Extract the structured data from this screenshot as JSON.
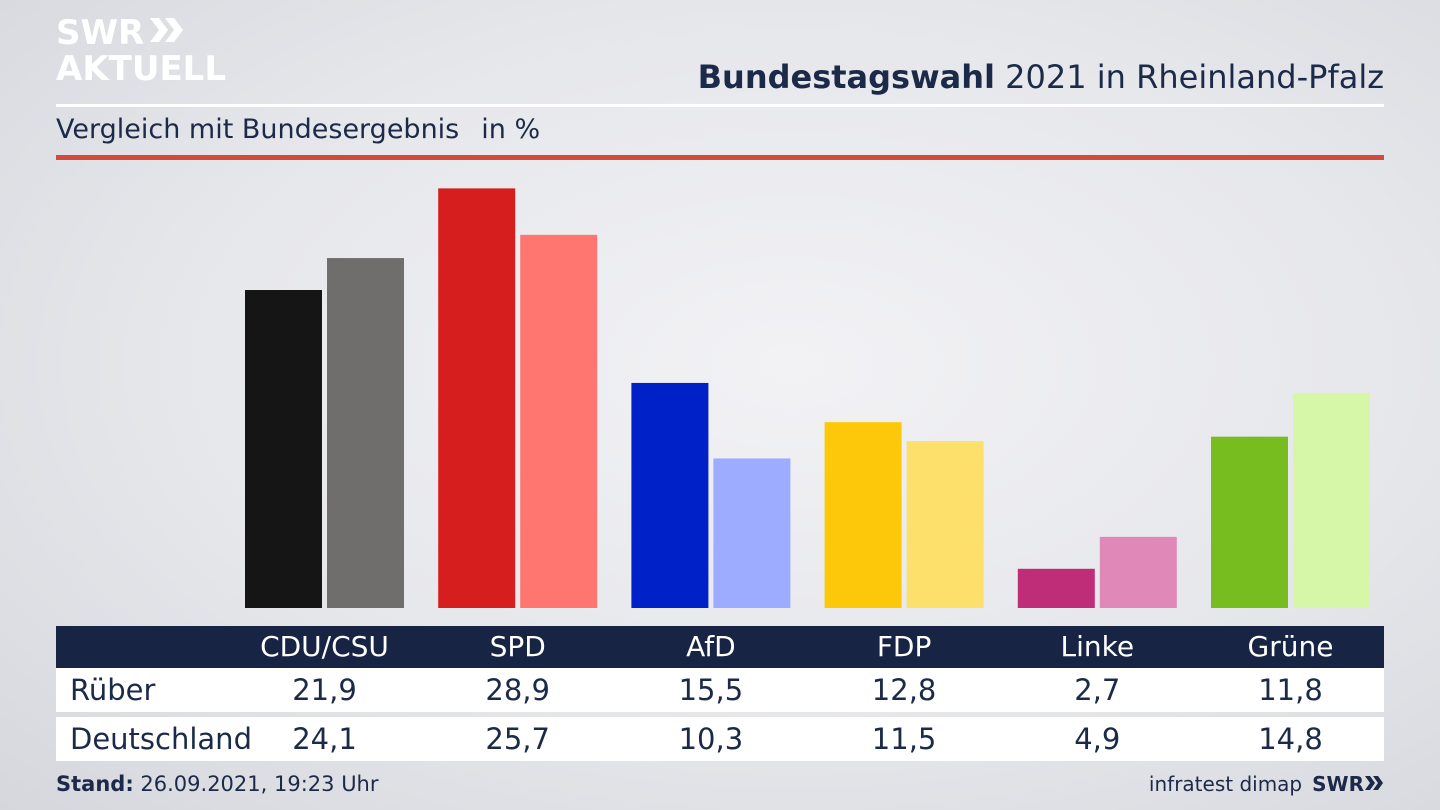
{
  "logo": {
    "line1": "SWR",
    "line2": "AKTUELL"
  },
  "header": {
    "title_bold": "Bundestagswahl",
    "title_rest": "2021 in Rheinland-Pfalz",
    "subtitle": "Vergleich mit Bundesergebnis",
    "unit": "in %"
  },
  "chart_data": {
    "type": "bar",
    "title": "Bundestagswahl 2021 in Rheinland-Pfalz",
    "subtitle": "Vergleich mit Bundesergebnis",
    "unit": "in %",
    "categories": [
      "CDU/CSU",
      "SPD",
      "AfD",
      "FDP",
      "Linke",
      "Grüne"
    ],
    "series": [
      {
        "name": "Rüber",
        "values": [
          21.9,
          28.9,
          15.5,
          12.8,
          2.7,
          11.8
        ]
      },
      {
        "name": "Deutschland",
        "values": [
          24.1,
          25.7,
          10.3,
          11.5,
          4.9,
          14.8
        ]
      }
    ],
    "colors": {
      "Rüber": [
        "#151515",
        "#d61e1e",
        "#0020c8",
        "#fdc80a",
        "#bf2d78",
        "#77bd20"
      ],
      "Deutschland": [
        "#6f6e6c",
        "#fe766f",
        "#9eacff",
        "#fde06c",
        "#e088b8",
        "#d6f6a8"
      ]
    },
    "ylim": [
      0,
      30
    ],
    "grid": false,
    "legend": "table-below"
  },
  "table": {
    "row_labels": [
      "Rüber",
      "Deutschland"
    ],
    "row1_values": [
      "21,9",
      "28,9",
      "15,5",
      "12,8",
      "2,7",
      "11,8"
    ],
    "row2_values": [
      "24,1",
      "25,7",
      "10,3",
      "11,5",
      "4,9",
      "14,8"
    ]
  },
  "footer": {
    "stand_label": "Stand:",
    "stand_value": "26.09.2021, 19:23 Uhr",
    "source": "infratest dimap",
    "brand": "SWR"
  }
}
